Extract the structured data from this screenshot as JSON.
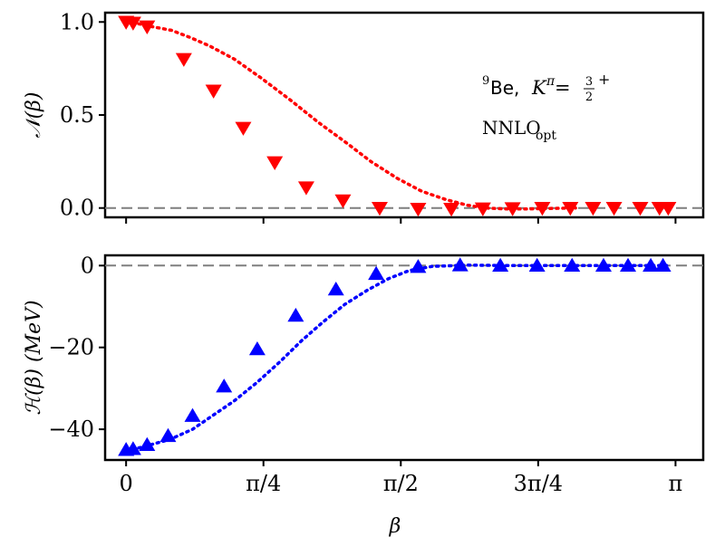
{
  "chart_data": [
    {
      "type": "scatter",
      "panel": "top",
      "ylabel": "𝒩(β)",
      "ylim": [
        -0.05,
        1.05
      ],
      "yticks": [
        0.0,
        0.5,
        1.0
      ],
      "ytick_labels": [
        "0.0",
        "0.5",
        "1.0"
      ],
      "reference_line": 0,
      "color": "#ff0000",
      "marker": "triangle-down",
      "x": [
        0.0,
        0.02,
        0.05,
        0.12,
        0.26,
        0.37,
        0.48,
        0.62,
        0.77,
        0.94,
        1.1,
        1.26,
        1.4,
        1.55,
        1.69,
        1.83,
        1.95,
        2.05,
        2.18,
        2.29,
        2.4,
        2.57
      ],
      "values": [
        1.0,
        0.999,
        0.995,
        0.98,
        0.955,
        0.915,
        0.87,
        0.8,
        0.7,
        0.58,
        0.46,
        0.35,
        0.25,
        0.16,
        0.09,
        0.045,
        0.015,
        0.0,
        -0.005,
        -0.005,
        -0.003,
        0.0
      ],
      "markers": [
        {
          "x": 0.0,
          "y": 1.0
        },
        {
          "x": 0.04,
          "y": 0.995
        },
        {
          "x": 0.12,
          "y": 0.975
        },
        {
          "x": 0.33,
          "y": 0.8
        },
        {
          "x": 0.5,
          "y": 0.63
        },
        {
          "x": 0.67,
          "y": 0.43
        },
        {
          "x": 0.85,
          "y": 0.245
        },
        {
          "x": 1.03,
          "y": 0.11
        },
        {
          "x": 1.24,
          "y": 0.04
        },
        {
          "x": 1.45,
          "y": 0.0
        },
        {
          "x": 1.67,
          "y": -0.005
        },
        {
          "x": 1.86,
          "y": -0.005
        },
        {
          "x": 2.04,
          "y": -0.003
        },
        {
          "x": 2.21,
          "y": -0.002
        },
        {
          "x": 2.38,
          "y": 0.0
        },
        {
          "x": 2.54,
          "y": 0.0
        },
        {
          "x": 2.67,
          "y": 0.0
        },
        {
          "x": 2.79,
          "y": 0.0
        },
        {
          "x": 2.94,
          "y": 0.0
        },
        {
          "x": 3.05,
          "y": 0.0
        },
        {
          "x": 3.1,
          "y": 0.0
        }
      ],
      "annotations": [
        {
          "nucleus_mass": "9",
          "nucleus": "Be,",
          "symbol": "K",
          "sup": "π",
          "eq": " = ",
          "num": "3",
          "den": "2",
          "parity": "+"
        },
        {
          "main": "NNLO",
          "sub": "opt"
        }
      ]
    },
    {
      "type": "scatter",
      "panel": "bottom",
      "xlabel": "β",
      "ylabel": "ℋ(β) (MeV)",
      "ylim": [
        -47.5,
        2.5
      ],
      "yticks": [
        0,
        -20,
        -40
      ],
      "ytick_labels": [
        "0",
        "−20",
        "−40"
      ],
      "xlim": [
        -0.12,
        3.3
      ],
      "xticks": [
        0,
        0.785398,
        1.570796,
        2.356194,
        3.141593
      ],
      "xtick_labels": [
        "0",
        "π/4",
        "π/2",
        "3π/4",
        "π"
      ],
      "reference_line": 0,
      "color": "#0000ff",
      "marker": "triangle-up",
      "line_points": {
        "x": [
          0.0,
          0.05,
          0.12,
          0.25,
          0.38,
          0.5,
          0.62,
          0.75,
          0.88,
          1.0,
          1.12,
          1.25,
          1.38,
          1.5,
          1.62,
          1.75,
          1.95,
          2.2,
          2.5,
          2.8,
          3.1
        ],
        "values": [
          -45.0,
          -44.8,
          -44.0,
          -42.5,
          -40.0,
          -36.5,
          -33.0,
          -28.5,
          -23.5,
          -18.5,
          -14.0,
          -9.5,
          -6.0,
          -3.2,
          -1.2,
          -0.2,
          0.1,
          0.0,
          0.0,
          0.0,
          0.0
        ]
      },
      "markers": [
        {
          "x": 0.0,
          "y": -45.0
        },
        {
          "x": 0.04,
          "y": -44.8
        },
        {
          "x": 0.12,
          "y": -43.8
        },
        {
          "x": 0.24,
          "y": -41.6
        },
        {
          "x": 0.38,
          "y": -36.7
        },
        {
          "x": 0.56,
          "y": -29.5
        },
        {
          "x": 0.75,
          "y": -20.4
        },
        {
          "x": 0.97,
          "y": -12.2
        },
        {
          "x": 1.2,
          "y": -5.8
        },
        {
          "x": 1.43,
          "y": -2.0
        },
        {
          "x": 1.67,
          "y": -0.3
        },
        {
          "x": 1.91,
          "y": 0.1
        },
        {
          "x": 2.14,
          "y": 0.0
        },
        {
          "x": 2.35,
          "y": 0.0
        },
        {
          "x": 2.55,
          "y": 0.0
        },
        {
          "x": 2.73,
          "y": 0.0
        },
        {
          "x": 2.87,
          "y": 0.0
        },
        {
          "x": 3.0,
          "y": 0.0
        },
        {
          "x": 3.07,
          "y": 0.0
        }
      ]
    }
  ]
}
